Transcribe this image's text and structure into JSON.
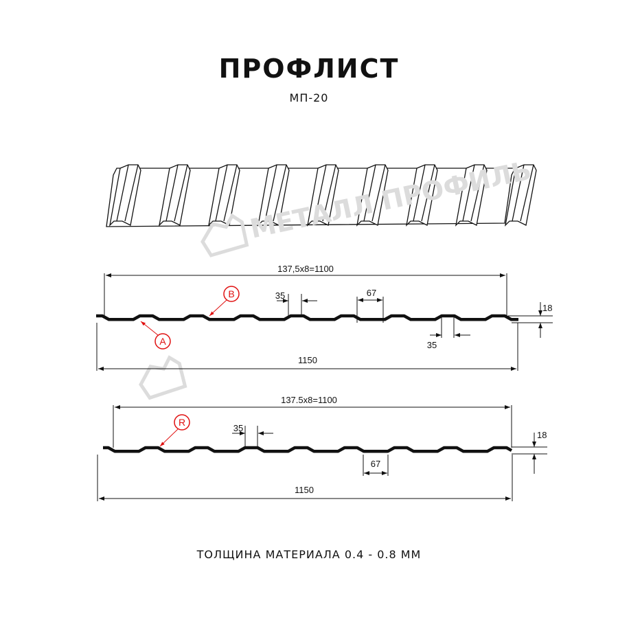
{
  "header": {
    "title": "ПРОФЛИСТ",
    "subtitle": "МП-20"
  },
  "footer": {
    "text": "ТОЛЩИНА МАТЕРИАЛА 0.4 - 0.8 ММ"
  },
  "watermark": {
    "text": "МЕТАЛЛ ПРОФИЛЬ"
  },
  "profile_params_mm": {
    "pitch": 137.5,
    "crest": 35,
    "trough": 67,
    "height": 18,
    "useful_width": 1100,
    "full_width": 1150
  },
  "colors": {
    "line": "#111111",
    "marker": "#e01010",
    "watermark": "#dcdcdc"
  },
  "drawing_1": {
    "useful_width_label": "137,5x8=1100",
    "full_width_label": "1150",
    "crest_label": "35",
    "crest_label_2": "35",
    "trough_label": "67",
    "height_label": "18",
    "marker_a": "A",
    "marker_b": "B"
  },
  "drawing_2": {
    "useful_width_label": "137.5x8=1100",
    "full_width_label": "1150",
    "crest_label": "35",
    "trough_label": "67",
    "height_label": "18",
    "marker_r": "R"
  }
}
